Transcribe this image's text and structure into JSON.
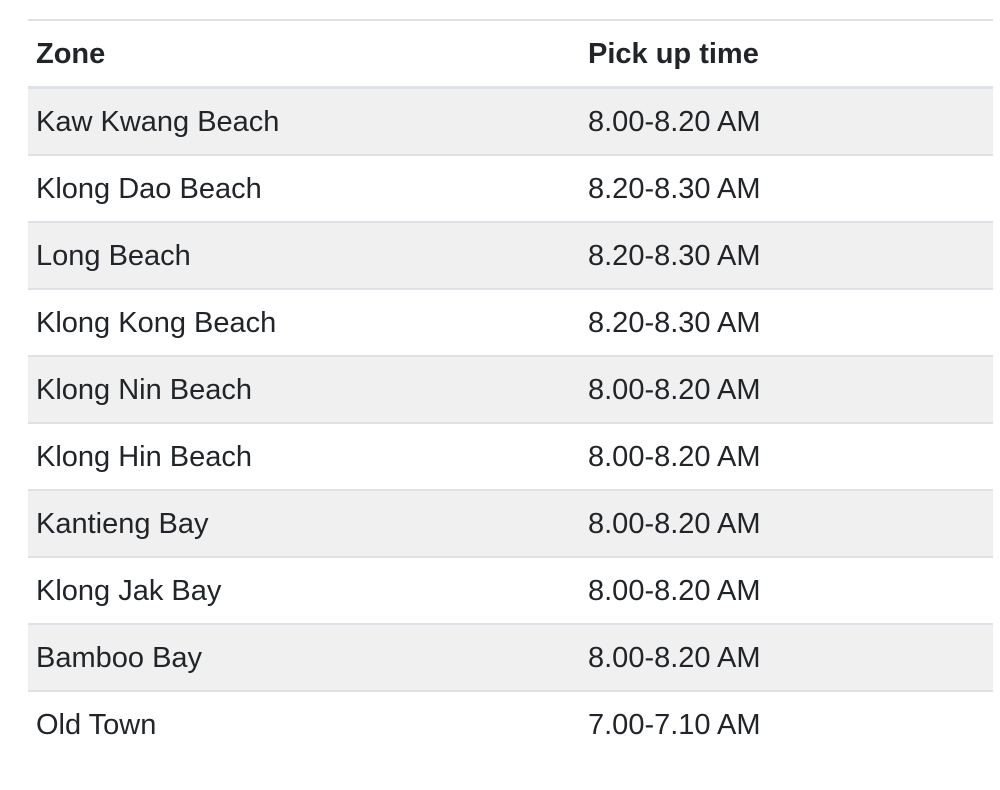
{
  "table": {
    "columns": [
      {
        "label": "Zone"
      },
      {
        "label": "Pick up time"
      }
    ],
    "rows": [
      {
        "zone": "Kaw Kwang Beach",
        "time": "8.00-8.20 AM"
      },
      {
        "zone": "Klong Dao Beach",
        "time": "8.20-8.30 AM"
      },
      {
        "zone": "Long Beach",
        "time": "8.20-8.30 AM"
      },
      {
        "zone": "Klong Kong Beach",
        "time": "8.20-8.30 AM"
      },
      {
        "zone": "Klong Nin Beach",
        "time": "8.00-8.20 AM"
      },
      {
        "zone": "Klong Hin Beach",
        "time": "8.00-8.20 AM"
      },
      {
        "zone": "Kantieng Bay",
        "time": "8.00-8.20 AM"
      },
      {
        "zone": "Klong Jak Bay",
        "time": "8.00-8.20 AM"
      },
      {
        "zone": "Bamboo Bay",
        "time": "8.00-8.20 AM"
      },
      {
        "zone": "Old Town",
        "time": "7.00-7.10 AM"
      }
    ],
    "colors": {
      "text": "#212529",
      "stripe_bg": "#f0f0f0",
      "border": "#dee2e6",
      "background": "#ffffff"
    }
  }
}
